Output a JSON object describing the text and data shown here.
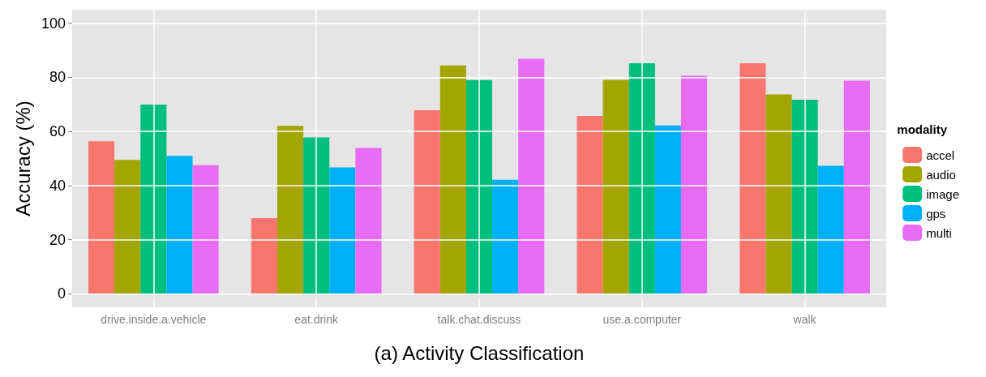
{
  "chart_data": {
    "type": "bar",
    "xlabel": "(a) Activity Classification",
    "ylabel": "Accuracy (%)",
    "legend_title": "modality",
    "legend": "right",
    "grid": true,
    "categories": [
      "drive.inside.a.vehicle",
      "eat.drink",
      "talk.chat.discuss",
      "use.a.computer",
      "walk"
    ],
    "ylim": [
      -5,
      105
    ],
    "yticks": [
      0,
      20,
      40,
      60,
      80,
      100
    ],
    "series": [
      {
        "name": "accel",
        "color": "#f8766d",
        "values": [
          56.4,
          28.0,
          67.8,
          65.7,
          85.2
        ]
      },
      {
        "name": "audio",
        "color": "#a3a500",
        "values": [
          49.5,
          62.1,
          84.4,
          79.1,
          73.7
        ]
      },
      {
        "name": "image",
        "color": "#00bf7d",
        "values": [
          69.9,
          57.8,
          79.0,
          85.2,
          71.7
        ]
      },
      {
        "name": "gps",
        "color": "#00b0f6",
        "values": [
          51.0,
          46.7,
          42.1,
          62.2,
          47.3
        ]
      },
      {
        "name": "multi",
        "color": "#e76bf3",
        "values": [
          47.5,
          53.9,
          86.9,
          80.6,
          78.8
        ]
      }
    ]
  }
}
